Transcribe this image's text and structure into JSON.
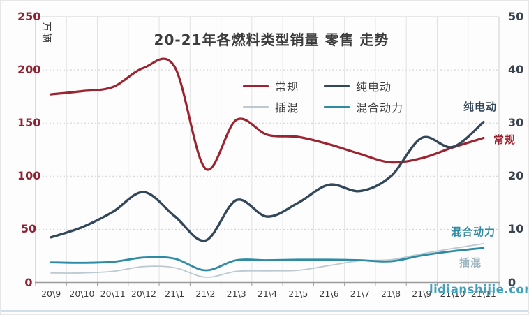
{
  "watermark": "lidianshijie.com",
  "chart_data": {
    "type": "line",
    "title": "20-21年各燃料类型销量 零售 走势",
    "left_axis": {
      "unit": "万辆",
      "range": [
        0,
        250
      ],
      "ticks": [
        0,
        50,
        100,
        150,
        200,
        250
      ],
      "label_color": "#8e2433"
    },
    "right_axis": {
      "range": [
        0,
        50
      ],
      "ticks": [
        0,
        10,
        20,
        30,
        40,
        50
      ],
      "label_color": "#39434f"
    },
    "categories": [
      "20\\9",
      "20\\10",
      "20\\11",
      "20\\12",
      "21\\1",
      "21\\2",
      "21\\3",
      "21\\4",
      "21\\5",
      "21\\6",
      "21\\7",
      "21\\8",
      "21\\9",
      "21\\10",
      "21\\11"
    ],
    "grid": true,
    "legend_position": "top-center",
    "series": [
      {
        "name": "常规",
        "key": "conventional",
        "axis": "left",
        "color": "#9b2430",
        "width": 3.2,
        "values": [
          177,
          180,
          184,
          202,
          203,
          107,
          153,
          139,
          137,
          130,
          121,
          113,
          117,
          127,
          136
        ]
      },
      {
        "name": "纯电动",
        "key": "bev",
        "axis": "right",
        "color": "#32475a",
        "width": 3.4,
        "values": [
          8.5,
          10.4,
          13.3,
          17,
          12.5,
          7.9,
          15.5,
          12.4,
          15,
          18.4,
          17.2,
          20,
          27.2,
          25.5,
          30.2
        ]
      },
      {
        "name": "插混",
        "key": "phev",
        "axis": "right",
        "color": "#bcc9d1",
        "width": 1.8,
        "values": [
          1.8,
          1.8,
          2.1,
          3.0,
          2.8,
          1.0,
          2.1,
          2.2,
          2.3,
          3.2,
          4.1,
          4.3,
          5.4,
          6.4,
          7.3
        ]
      },
      {
        "name": "混合动力",
        "key": "hev",
        "axis": "right",
        "color": "#2f8ba4",
        "width": 2.8,
        "values": [
          3.8,
          3.7,
          3.9,
          4.7,
          4.5,
          2.3,
          4.2,
          4.2,
          4.3,
          4.3,
          4.2,
          4.0,
          5.1,
          5.9,
          6.5
        ]
      }
    ]
  }
}
